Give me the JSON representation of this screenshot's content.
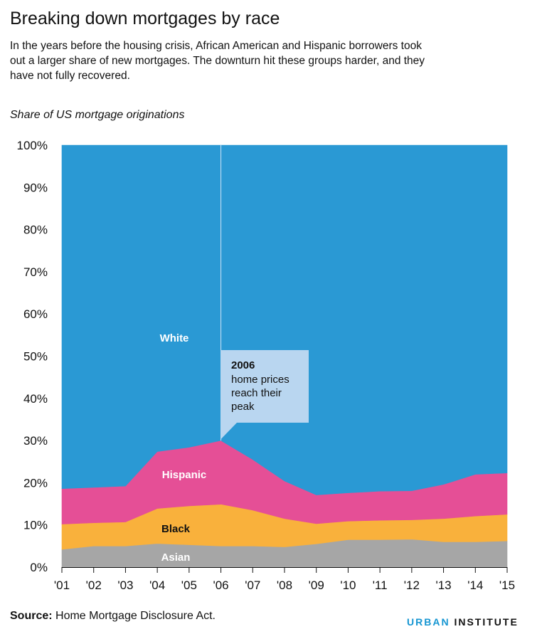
{
  "header": {
    "title": "Breaking down mortgages by race",
    "subtitle": "In the years before the housing crisis, African American and Hispanic borrowers took out a larger share of new mortgages. The downturn hit these groups harder, and they have not fully recovered."
  },
  "chart_label": "Share of US mortgage originations",
  "footer": {
    "source_bold": "Source:",
    "source_text": " Home Mortgage Disclosure Act.",
    "brand_part1": "URBAN",
    "brand_part2": "INSTITUTE"
  },
  "colors": {
    "white": "#2a99d4",
    "hispanic": "#e54f96",
    "black": "#f9b13c",
    "asian": "#a6a6a6",
    "annotation_box": "#b9d6f0",
    "brand_blue": "#1696d2"
  },
  "chart_data": {
    "type": "area",
    "stacked": true,
    "x": [
      "'01",
      "'02",
      "'03",
      "'04",
      "'05",
      "'06",
      "'07",
      "'08",
      "'09",
      "'10",
      "'11",
      "'12",
      "'13",
      "'14",
      "'15"
    ],
    "ylim": [
      0,
      100
    ],
    "yticks": [
      "0%",
      "10%",
      "20%",
      "30%",
      "40%",
      "50%",
      "60%",
      "70%",
      "80%",
      "90%",
      "100%"
    ],
    "series": [
      {
        "name": "Asian",
        "values": [
          4.2,
          5.0,
          5.0,
          5.6,
          5.3,
          5.0,
          5.0,
          4.8,
          5.5,
          6.5,
          6.5,
          6.6,
          6.0,
          6.0,
          6.2
        ]
      },
      {
        "name": "Black",
        "values": [
          6.0,
          5.5,
          5.7,
          8.3,
          9.2,
          9.9,
          8.5,
          6.7,
          4.8,
          4.4,
          4.6,
          4.6,
          5.5,
          6.1,
          6.3
        ]
      },
      {
        "name": "Hispanic",
        "values": [
          8.4,
          8.4,
          8.5,
          13.5,
          13.9,
          15.1,
          12.0,
          8.9,
          6.8,
          6.7,
          6.9,
          6.9,
          8.1,
          9.9,
          9.8
        ]
      },
      {
        "name": "White",
        "values": [
          81.4,
          81.1,
          80.8,
          72.6,
          71.6,
          70.0,
          74.5,
          79.6,
          82.9,
          82.4,
          82.0,
          81.9,
          80.4,
          78.0,
          77.7
        ]
      }
    ],
    "annotation": {
      "x": "'06",
      "title": "2006",
      "text": "home prices reach their peak"
    }
  }
}
